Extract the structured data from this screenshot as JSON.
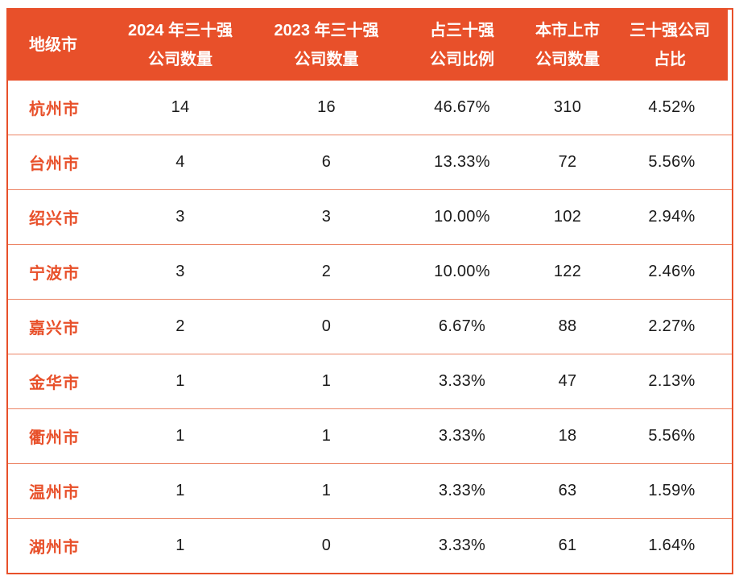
{
  "colors": {
    "header_bg": "#E8502A",
    "header_text": "#FFFFFF",
    "city_text": "#E8502A",
    "value_text": "#1A1A1A",
    "row_divider": "#EC8566",
    "outer_border": "#E8502A"
  },
  "chart_data": {
    "type": "table",
    "columns": [
      {
        "id": "city",
        "label": "地级市",
        "line1": "地级市",
        "line2": ""
      },
      {
        "id": "count_2024",
        "label": "2024 年三十强公司数量",
        "line1": "2024 年三十强",
        "line2": "公司数量"
      },
      {
        "id": "count_2023",
        "label": "2023 年三十强公司数量",
        "line1": "2023 年三十强",
        "line2": "公司数量"
      },
      {
        "id": "top30_share",
        "label": "占三十强公司比例",
        "line1": "占三十强",
        "line2": "公司比例"
      },
      {
        "id": "listed_companies",
        "label": "本市上市公司数量",
        "line1": "本市上市",
        "line2": "公司数量"
      },
      {
        "id": "top30_ratio",
        "label": "三十强公司占比",
        "line1": "三十强公司",
        "line2": "占比"
      }
    ],
    "rows": [
      {
        "city": "杭州市",
        "count_2024": "14",
        "count_2023": "16",
        "top30_share": "46.67%",
        "listed_companies": "310",
        "top30_ratio": "4.52%"
      },
      {
        "city": "台州市",
        "count_2024": "4",
        "count_2023": "6",
        "top30_share": "13.33%",
        "listed_companies": "72",
        "top30_ratio": "5.56%"
      },
      {
        "city": "绍兴市",
        "count_2024": "3",
        "count_2023": "3",
        "top30_share": "10.00%",
        "listed_companies": "102",
        "top30_ratio": "2.94%"
      },
      {
        "city": "宁波市",
        "count_2024": "3",
        "count_2023": "2",
        "top30_share": "10.00%",
        "listed_companies": "122",
        "top30_ratio": "2.46%"
      },
      {
        "city": "嘉兴市",
        "count_2024": "2",
        "count_2023": "0",
        "top30_share": "6.67%",
        "listed_companies": "88",
        "top30_ratio": "2.27%"
      },
      {
        "city": "金华市",
        "count_2024": "1",
        "count_2023": "1",
        "top30_share": "3.33%",
        "listed_companies": "47",
        "top30_ratio": "2.13%"
      },
      {
        "city": "衢州市",
        "count_2024": "1",
        "count_2023": "1",
        "top30_share": "3.33%",
        "listed_companies": "18",
        "top30_ratio": "5.56%"
      },
      {
        "city": "温州市",
        "count_2024": "1",
        "count_2023": "1",
        "top30_share": "3.33%",
        "listed_companies": "63",
        "top30_ratio": "1.59%"
      },
      {
        "city": "湖州市",
        "count_2024": "1",
        "count_2023": "0",
        "top30_share": "3.33%",
        "listed_companies": "61",
        "top30_ratio": "1.64%"
      }
    ]
  }
}
